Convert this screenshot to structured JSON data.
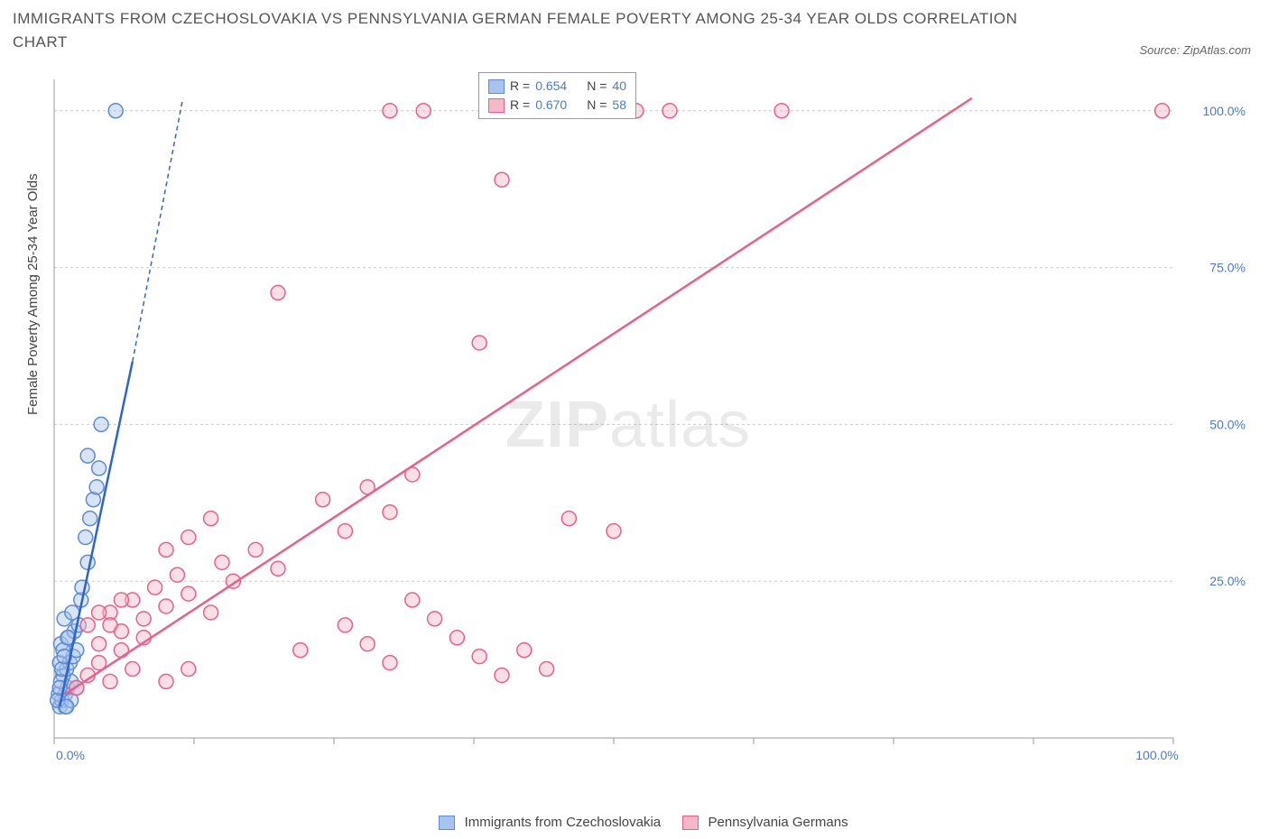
{
  "title": "IMMIGRANTS FROM CZECHOSLOVAKIA VS PENNSYLVANIA GERMAN FEMALE POVERTY AMONG 25-34 YEAR OLDS CORRELATION CHART",
  "source": "Source: ZipAtlas.com",
  "ylabel": "Female Poverty Among 25-34 Year Olds",
  "watermark_a": "ZIP",
  "watermark_b": "atlas",
  "chart": {
    "type": "scatter",
    "background_color": "#ffffff",
    "grid_color": "#cccccc",
    "axis_color": "#999999",
    "xlim": [
      0,
      100
    ],
    "ylim": [
      0,
      105
    ],
    "y_ticks": [
      25,
      50,
      75,
      100
    ],
    "y_tick_labels": [
      "25.0%",
      "50.0%",
      "75.0%",
      "100.0%"
    ],
    "x_ticks": [
      0,
      100
    ],
    "x_tick_labels": [
      "0.0%",
      "100.0%"
    ],
    "x_minor_ticks": [
      12.5,
      25,
      37.5,
      50,
      62.5,
      75,
      87.5
    ],
    "marker_radius": 8,
    "marker_stroke_width": 1.5,
    "series": [
      {
        "name": "Immigrants from Czechoslovakia",
        "fill": "#a8c4ec",
        "fill_opacity": 0.45,
        "stroke": "#5b8bd4",
        "R": "0.654",
        "N": "40",
        "trend": {
          "x1": 0.5,
          "y1": 5,
          "x2": 7,
          "y2": 60,
          "dash_to_x": 11.5,
          "dash_to_y": 102,
          "color": "#2f66c4",
          "width": 2.5
        },
        "points": [
          [
            0.5,
            5
          ],
          [
            0.7,
            6
          ],
          [
            1,
            7
          ],
          [
            1.2,
            8
          ],
          [
            1.5,
            9
          ],
          [
            0.8,
            10
          ],
          [
            1.1,
            11
          ],
          [
            1.4,
            12
          ],
          [
            1.7,
            13
          ],
          [
            2,
            14
          ],
          [
            0.6,
            15
          ],
          [
            1.3,
            16
          ],
          [
            1.8,
            17
          ],
          [
            2.2,
            18
          ],
          [
            0.9,
            19
          ],
          [
            1.6,
            20
          ],
          [
            2.4,
            22
          ],
          [
            1.0,
            5
          ],
          [
            1.5,
            6
          ],
          [
            2.0,
            8
          ],
          [
            0.5,
            12
          ],
          [
            0.8,
            14
          ],
          [
            1.2,
            16
          ],
          [
            2.5,
            24
          ],
          [
            3.0,
            28
          ],
          [
            2.8,
            32
          ],
          [
            3.2,
            35
          ],
          [
            3.5,
            38
          ],
          [
            3.8,
            40
          ],
          [
            4.0,
            43
          ],
          [
            3.0,
            45
          ],
          [
            4.2,
            50
          ],
          [
            0.4,
            7
          ],
          [
            0.6,
            9
          ],
          [
            0.3,
            6
          ],
          [
            0.5,
            8
          ],
          [
            0.7,
            11
          ],
          [
            0.9,
            13
          ],
          [
            1.1,
            5
          ],
          [
            5.5,
            100
          ]
        ]
      },
      {
        "name": "Pennsylvania Germans",
        "fill": "#f4b8c9",
        "fill_opacity": 0.45,
        "stroke": "#ec5f8a",
        "R": "0.670",
        "N": "58",
        "trend": {
          "x1": 1,
          "y1": 7,
          "x2": 82,
          "y2": 102,
          "color": "#ec5f8a",
          "width": 2.5
        },
        "points": [
          [
            2,
            8
          ],
          [
            3,
            10
          ],
          [
            4,
            12
          ],
          [
            5,
            9
          ],
          [
            6,
            14
          ],
          [
            7,
            11
          ],
          [
            8,
            16
          ],
          [
            3,
            18
          ],
          [
            4,
            15
          ],
          [
            5,
            20
          ],
          [
            6,
            17
          ],
          [
            7,
            22
          ],
          [
            8,
            19
          ],
          [
            9,
            24
          ],
          [
            10,
            21
          ],
          [
            11,
            26
          ],
          [
            12,
            23
          ],
          [
            10,
            9
          ],
          [
            12,
            11
          ],
          [
            14,
            20
          ],
          [
            15,
            28
          ],
          [
            16,
            25
          ],
          [
            18,
            30
          ],
          [
            20,
            27
          ],
          [
            22,
            14
          ],
          [
            24,
            38
          ],
          [
            26,
            33
          ],
          [
            28,
            40
          ],
          [
            30,
            36
          ],
          [
            32,
            42
          ],
          [
            26,
            18
          ],
          [
            28,
            15
          ],
          [
            30,
            12
          ],
          [
            32,
            22
          ],
          [
            34,
            19
          ],
          [
            36,
            16
          ],
          [
            38,
            13
          ],
          [
            40,
            10
          ],
          [
            42,
            14
          ],
          [
            44,
            11
          ],
          [
            20,
            71
          ],
          [
            30,
            100
          ],
          [
            33,
            100
          ],
          [
            38,
            63
          ],
          [
            40,
            89
          ],
          [
            40,
            100
          ],
          [
            52,
            100
          ],
          [
            55,
            100
          ],
          [
            46,
            35
          ],
          [
            50,
            33
          ],
          [
            65,
            100
          ],
          [
            99,
            100
          ],
          [
            10,
            30
          ],
          [
            12,
            32
          ],
          [
            14,
            35
          ],
          [
            4,
            20
          ],
          [
            5,
            18
          ],
          [
            6,
            22
          ]
        ]
      }
    ]
  },
  "legend_bottom": {
    "items": [
      {
        "label": "Immigrants from Czechoslovakia",
        "fill": "#a8c4ec",
        "stroke": "#5b8bd4"
      },
      {
        "label": "Pennsylvania Germans",
        "fill": "#f4b8c9",
        "stroke": "#ec5f8a"
      }
    ]
  }
}
